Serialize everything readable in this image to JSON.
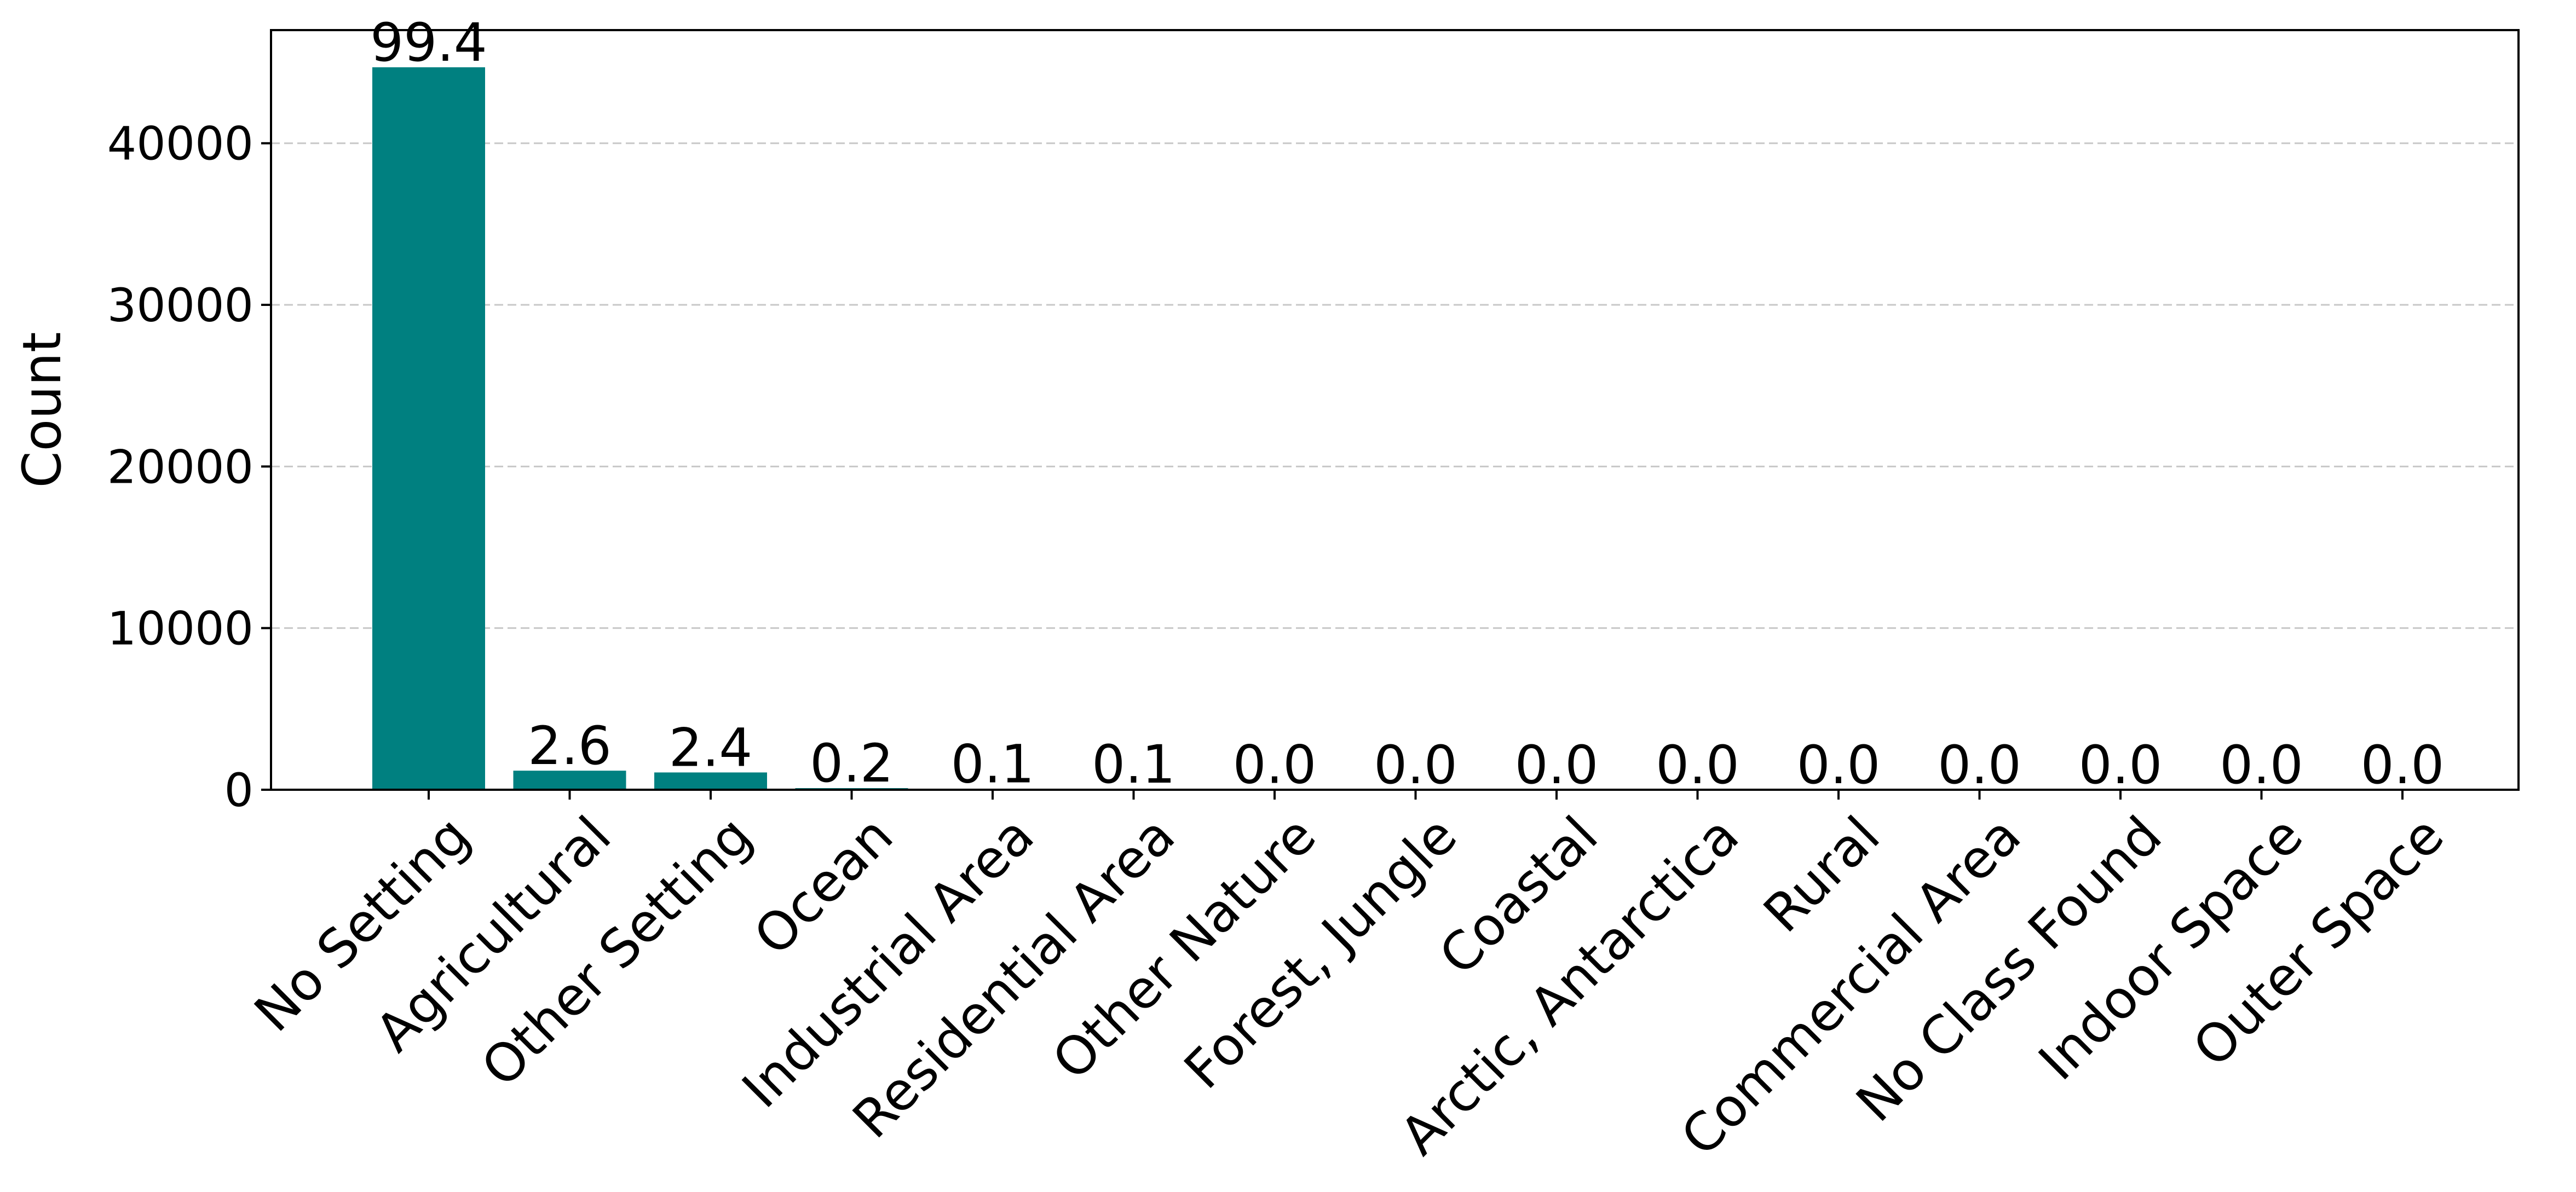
{
  "chart_data": {
    "type": "bar",
    "title": "",
    "xlabel": "",
    "ylabel": "Count",
    "ylim": [
      0,
      47000
    ],
    "yticks": [
      0,
      10000,
      20000,
      30000,
      40000
    ],
    "ytick_labels": [
      "0",
      "10000",
      "20000",
      "30000",
      "40000"
    ],
    "grid": "y-dashed",
    "legend": "none",
    "bar_color": "#008080",
    "grid_color": "#c8c8c8",
    "categories": [
      "No Setting",
      "Agricultural",
      "Other Setting",
      "Ocean",
      "Industrial Area",
      "Residential Area",
      "Other Nature",
      "Forest, Jungle",
      "Coastal",
      "Arctic, Antarctica",
      "Rural",
      "Commercial Area",
      "No Class Found",
      "Indoor Space",
      "Outer Space"
    ],
    "values": [
      44700,
      1180,
      1070,
      100,
      50,
      40,
      10,
      8,
      6,
      5,
      4,
      3,
      2,
      1,
      1
    ],
    "data_labels": [
      "99.4",
      "2.6",
      "2.4",
      "0.2",
      "0.1",
      "0.1",
      "0.0",
      "0.0",
      "0.0",
      "0.0",
      "0.0",
      "0.0",
      "0.0",
      "0.0",
      "0.0"
    ]
  }
}
